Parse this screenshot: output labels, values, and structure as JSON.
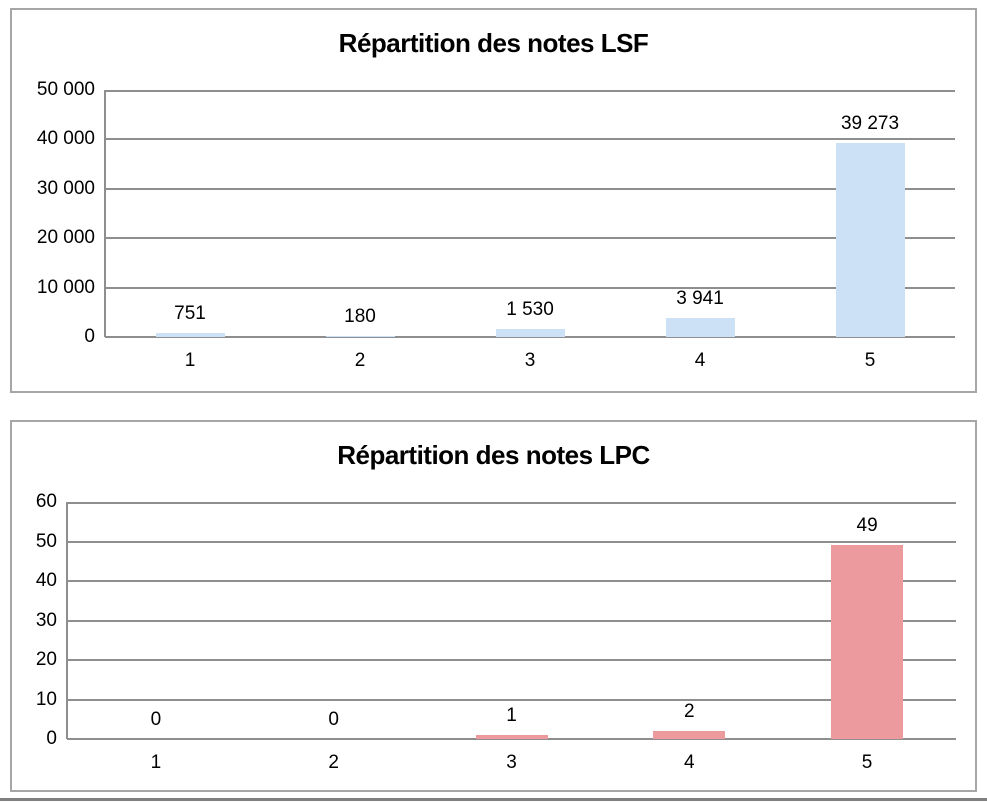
{
  "chart_data": [
    {
      "type": "bar",
      "title": "Répartition des notes LSF",
      "categories": [
        "1",
        "2",
        "3",
        "4",
        "5"
      ],
      "values": [
        751,
        180,
        1530,
        3941,
        39273
      ],
      "value_labels": [
        "751",
        "180",
        "1 530",
        "3 941",
        "39 273"
      ],
      "ylim": [
        0,
        50000
      ],
      "y_ticks": [
        0,
        10000,
        20000,
        30000,
        40000,
        50000
      ],
      "y_tick_labels": [
        "0",
        "10 000",
        "20 000",
        "30 000",
        "40 000",
        "50 000"
      ],
      "bar_color": "#cde1f6",
      "grid": true,
      "legend": "none",
      "xlabel": "",
      "ylabel": ""
    },
    {
      "type": "bar",
      "title": "Répartition des notes LPC",
      "categories": [
        "1",
        "2",
        "3",
        "4",
        "5"
      ],
      "values": [
        0,
        0,
        1,
        2,
        49
      ],
      "value_labels": [
        "0",
        "0",
        "1",
        "2",
        "49"
      ],
      "ylim": [
        0,
        60
      ],
      "y_ticks": [
        0,
        10,
        20,
        30,
        40,
        50,
        60
      ],
      "y_tick_labels": [
        "0",
        "10",
        "20",
        "30",
        "40",
        "50",
        "60"
      ],
      "bar_color": "#ec9a9d",
      "grid": true,
      "legend": "none",
      "xlabel": "",
      "ylabel": ""
    }
  ],
  "colors": {
    "gridline": "#8e8e8e",
    "card_border": "#a6a6a6",
    "text": "#000000",
    "lsf_bar": "#cde1f6",
    "lpc_bar": "#ec9a9d"
  }
}
